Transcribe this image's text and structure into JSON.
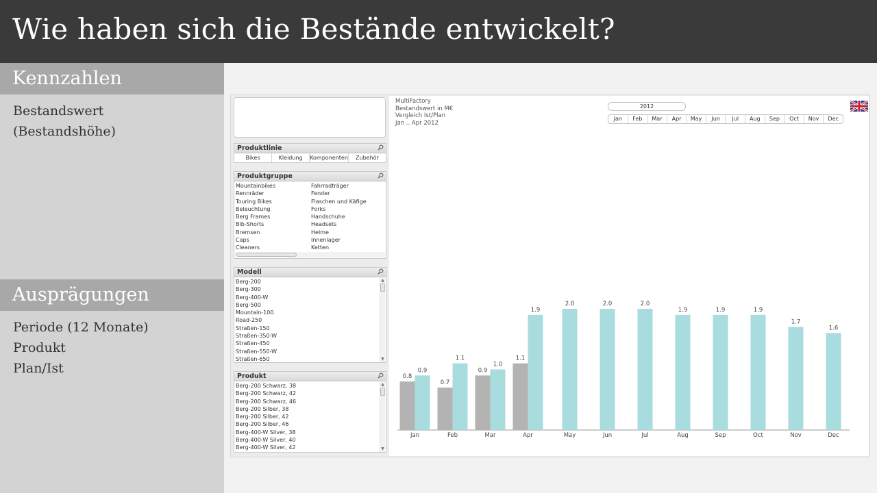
{
  "slide": {
    "title": "Wie haben sich die Bestände entwickelt?"
  },
  "left_panel": {
    "section1_header": "Kennzahlen",
    "section1_items": [
      "Bestandswert",
      "(Bestandshöhe)"
    ],
    "section2_header": "Ausprägungen",
    "section2_items": [
      "Periode (12 Monate)",
      "Produkt",
      "Plan/Ist"
    ]
  },
  "app": {
    "produktlinie": {
      "title": "Produktlinie",
      "items": [
        "Bikes",
        "Kleidung",
        "Komponenten",
        "Zubehör"
      ]
    },
    "produktgruppe": {
      "title": "Produktgruppe",
      "col1": [
        "Mountainbikes",
        "Rennräder",
        "Touring Bikes",
        "Beleuchtung",
        "Berg Frames",
        "Bib-Shorts",
        "Bremsen",
        "Caps",
        "Cleaners"
      ],
      "col2": [
        "Fahrradträger",
        "Fender",
        "Flaschen und Käfige",
        "Forks",
        "Handschuhe",
        "Headsets",
        "Helme",
        "Innenlager",
        "Ketten"
      ]
    },
    "modell": {
      "title": "Modell",
      "items": [
        "Berg-200",
        "Berg-300",
        "Berg-400-W",
        "Berg-500",
        "Mountain-100",
        "Road-250",
        "Straßen-150",
        "Straßen-350-W",
        "Straßen-450",
        "Straßen-550-W",
        "Straßen-650"
      ]
    },
    "produkt": {
      "title": "Produkt",
      "items": [
        "Berg-200 Schwarz, 38",
        "Berg-200 Schwarz, 42",
        "Berg-200 Schwarz, 46",
        "Berg-200 Silber, 38",
        "Berg-200 Silber, 42",
        "Berg-200 Silber, 46",
        "Berg-400-W Silver, 38",
        "Berg-400-W Silver, 40",
        "Berg-400-W Silver, 42"
      ]
    },
    "chart_meta": {
      "line1": "MultiFactory",
      "line2": "Bestandswert in M€",
      "line3": "Vergleich Ist/Plan",
      "line4": "Jan .. Apr 2012"
    },
    "year_selector": "2012",
    "month_selector": [
      "Jan",
      "Feb",
      "Mar",
      "Apr",
      "May",
      "Jun",
      "Jul",
      "Aug",
      "Sep",
      "Oct",
      "Nov",
      "Dec"
    ],
    "flag_icon": "uk-flag-icon"
  },
  "colors": {
    "ist": "#b3b3b3",
    "plan": "#a8dcde",
    "title_bar": "#3a3a3a",
    "section_header": "#a8a8a8"
  },
  "chart_data": {
    "type": "bar",
    "categories": [
      "Jan",
      "Feb",
      "Mar",
      "Apr",
      "May",
      "Jun",
      "Jul",
      "Aug",
      "Sep",
      "Oct",
      "Nov",
      "Dec"
    ],
    "series": [
      {
        "values": [
          0.8,
          0.7,
          0.9,
          1.1,
          null,
          null,
          null,
          null,
          null,
          null,
          null,
          null
        ],
        "color": "#b3b3b3"
      },
      {
        "values": [
          0.9,
          1.1,
          1.0,
          1.9,
          2.0,
          2.0,
          2.0,
          1.9,
          1.9,
          1.9,
          1.7,
          1.6
        ],
        "color": "#a8dcde"
      }
    ],
    "labels": {
      "series0": [
        "0.8",
        "0.7",
        "0.9",
        "1.1",
        "",
        "",
        "",
        "",
        "",
        "",
        "",
        ""
      ],
      "series1": [
        "0.9",
        "1.1",
        "1.0",
        "1.9",
        "2.0",
        "2.0",
        "2.0",
        "1.9",
        "1.9",
        "1.9",
        "1.7",
        "1.6"
      ]
    },
    "ylim": [
      0,
      2.1
    ],
    "grid": false,
    "title": "",
    "xlabel": "",
    "ylabel": ""
  }
}
